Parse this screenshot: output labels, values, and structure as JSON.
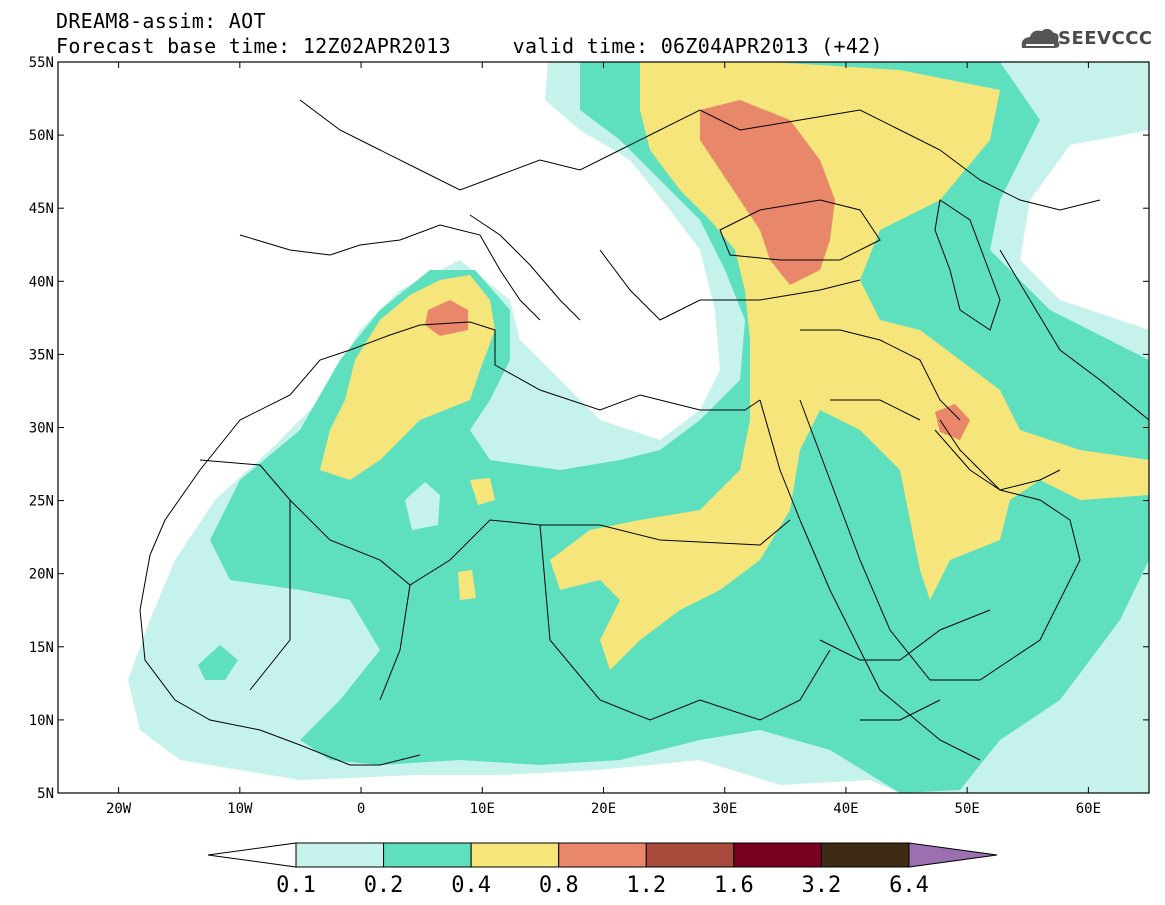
{
  "header": {
    "title_line1": "DREAM8-assim: AOT",
    "title_line2": "Forecast base time: 12Z02APR2013     valid time: 06Z04APR2013 (+42)",
    "logo_text": "SEEVCCC"
  },
  "map": {
    "lon_range": [
      -25,
      65
    ],
    "lat_range": [
      5,
      55
    ],
    "lat_ticks": [
      "55N",
      "50N",
      "45N",
      "40N",
      "35N",
      "30N",
      "25N",
      "20N",
      "15N",
      "10N",
      "5N"
    ],
    "lon_ticks": [
      "20W",
      "10W",
      "0",
      "10E",
      "20E",
      "30E",
      "40E",
      "50E",
      "60E"
    ]
  },
  "colorbar": {
    "labels": [
      "0.1",
      "0.2",
      "0.4",
      "0.8",
      "1.2",
      "1.6",
      "3.2",
      "6.4"
    ],
    "colors": [
      "#ffffff",
      "#c6f2ec",
      "#5ee0bf",
      "#f6e57a",
      "#e8876a",
      "#a84a3c",
      "#7a0022",
      "#3d2a14",
      "#9a70b0"
    ]
  }
}
